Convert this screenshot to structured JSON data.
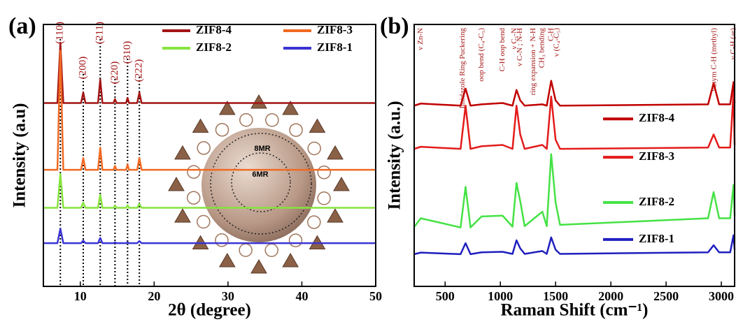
{
  "chart_data": [
    {
      "type": "line",
      "title": "(a)",
      "x_label": "2θ (degree)",
      "y_label": "Intensity (a.u)",
      "xlim": [
        5,
        50
      ],
      "xticks": [
        10,
        20,
        30,
        40,
        50
      ],
      "ylim": [
        0,
        100
      ],
      "legend": "upper-center",
      "x": [
        5,
        6.9,
        7.3,
        7.7,
        10.1,
        10.4,
        10.7,
        12.4,
        12.7,
        13.0,
        14.5,
        14.7,
        14.9,
        16.2,
        16.4,
        16.6,
        17.7,
        18.0,
        18.3,
        50
      ],
      "series": [
        {
          "name": "ZIF8-4",
          "color": "#a31515",
          "values": [
            70,
            70,
            93,
            70,
            70,
            74,
            70,
            70,
            79,
            70,
            70,
            71.5,
            70,
            70,
            72,
            70,
            70,
            74,
            70,
            70
          ]
        },
        {
          "name": "ZIF8-3",
          "color": "#f06a22",
          "values": [
            44.5,
            44.5,
            90,
            44.5,
            44.5,
            49,
            44.5,
            44.5,
            53,
            44.5,
            44.5,
            46,
            44.5,
            44.5,
            46.5,
            44.5,
            44.5,
            49,
            44.5,
            44.5
          ]
        },
        {
          "name": "ZIF8-2",
          "color": "#86e43e",
          "values": [
            30,
            30,
            43,
            30,
            30,
            32,
            30,
            30,
            35,
            30,
            30,
            30.8,
            30,
            30,
            31,
            30,
            30,
            31.5,
            30,
            30
          ]
        },
        {
          "name": "ZIF8-1",
          "color": "#3a34d4",
          "values": [
            16.5,
            16.5,
            22,
            16.5,
            16.5,
            17.5,
            16.5,
            16.5,
            18.5,
            16.5,
            16.5,
            16.8,
            16.5,
            16.5,
            16.8,
            16.5,
            16.5,
            17.3,
            16.5,
            16.5
          ]
        }
      ],
      "annotations": [
        {
          "text": "(110)",
          "x": 7.3
        },
        {
          "text": "(200)",
          "x": 10.4
        },
        {
          "text": "(211)",
          "x": 12.7
        },
        {
          "text": "(220)",
          "x": 14.7
        },
        {
          "text": "(310)",
          "x": 16.4
        },
        {
          "text": "(222)",
          "x": 18.0
        }
      ],
      "inset_labels": [
        "8MR",
        "6MR"
      ]
    },
    {
      "type": "line",
      "title": "(b)",
      "x_label": "Raman Shift (cm⁻¹)",
      "y_label": "Intensity (a.u.)",
      "xlim": [
        220,
        3120
      ],
      "xticks": [
        500,
        1000,
        1500,
        2000,
        2500,
        3000
      ],
      "ylim": [
        0,
        100
      ],
      "legend": "inline",
      "x": [
        220,
        280,
        640,
        685,
        730,
        830,
        1020,
        1110,
        1146,
        1180,
        1220,
        1380,
        1420,
        1460,
        1500,
        1540,
        2880,
        2930,
        2980,
        3080,
        3110,
        3120
      ],
      "series": [
        {
          "name": "ZIF8-4",
          "color": "#c00000",
          "values": [
            69,
            69.8,
            69,
            75.5,
            69,
            69.5,
            70,
            69,
            75,
            71,
            69,
            69.5,
            69,
            78.5,
            71,
            69,
            69.5,
            77.6,
            69.5,
            69.5,
            78,
            70
          ]
        },
        {
          "name": "ZIF8-3",
          "color": "#e41b1b",
          "values": [
            52.5,
            53.3,
            52.5,
            69,
            52.5,
            53.5,
            54,
            52.5,
            69,
            58,
            52.5,
            54,
            52.5,
            72.5,
            56,
            52.5,
            53,
            58,
            53,
            53,
            74,
            54
          ]
        },
        {
          "name": "ZIF8-2",
          "color": "#44e244",
          "values": [
            22.7,
            26,
            22.5,
            38,
            22.5,
            26.7,
            27,
            22.8,
            39.5,
            32.5,
            23,
            28.5,
            23,
            50.5,
            32,
            23.5,
            26,
            36,
            26,
            26,
            38.7,
            27
          ]
        },
        {
          "name": "ZIF8-1",
          "color": "#1f1fbf",
          "values": [
            12.3,
            12.9,
            12.3,
            16.5,
            12.3,
            13,
            13.2,
            12.4,
            17.6,
            14.5,
            12.4,
            13.5,
            12.4,
            18.7,
            14,
            12.4,
            13,
            15.7,
            13,
            13,
            19.5,
            14
          ]
        }
      ],
      "annotations": [
        {
          "text": "ν Zn-N",
          "x": 280
        },
        {
          "text": "Imidazole Ring Puckering",
          "x": 660
        },
        {
          "text": "oop bend (C₄-C₅)",
          "x": 830
        },
        {
          "text": "C-H oop bend",
          "x": 1020
        },
        {
          "text": "ν C₅-N",
          "x": 1130
        },
        {
          "text": "ν C-N ; N-H",
          "x": 1180
        },
        {
          "text": "ring expansion + N-H",
          "x": 1300
        },
        {
          "text": "CH₃ bending",
          "x": 1380
        },
        {
          "text": "C-H",
          "x": 1460
        },
        {
          "text": "ν (C₄-C₅)",
          "x": 1510
        },
        {
          "text": "νasym C-H (methyl)",
          "x": 2935
        },
        {
          "text": "ν C-H (ar)",
          "x": 3110
        }
      ]
    }
  ]
}
